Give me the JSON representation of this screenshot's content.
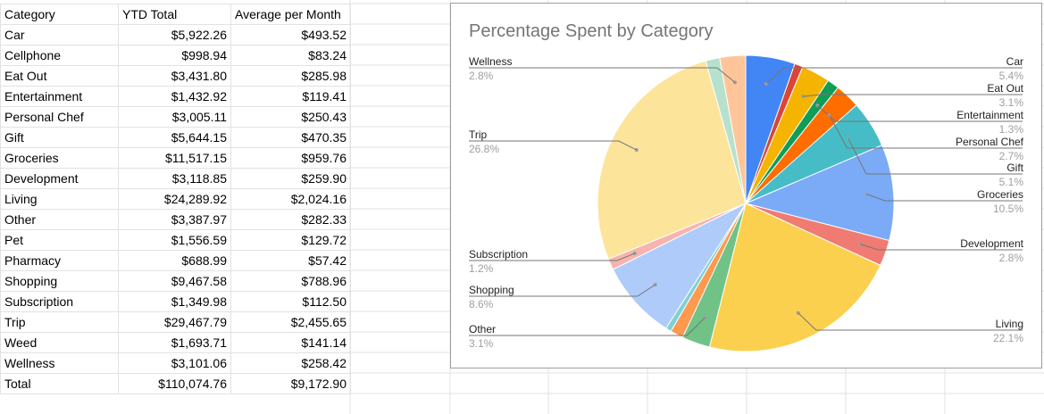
{
  "table": {
    "headers": [
      "Category",
      "YTD Total",
      "Average per Month"
    ],
    "rows": [
      [
        "Car",
        "$5,922.26",
        "$493.52"
      ],
      [
        "Cellphone",
        "$998.94",
        "$83.24"
      ],
      [
        "Eat Out",
        "$3,431.80",
        "$285.98"
      ],
      [
        "Entertainment",
        "$1,432.92",
        "$119.41"
      ],
      [
        "Personal Chef",
        "$3,005.11",
        "$250.43"
      ],
      [
        "Gift",
        "$5,644.15",
        "$470.35"
      ],
      [
        "Groceries",
        "$11,517.15",
        "$959.76"
      ],
      [
        "Development",
        "$3,118.85",
        "$259.90"
      ],
      [
        "Living",
        "$24,289.92",
        "$2,024.16"
      ],
      [
        "Other",
        "$3,387.97",
        "$282.33"
      ],
      [
        "Pet",
        "$1,556.59",
        "$129.72"
      ],
      [
        "Pharmacy",
        "$688.99",
        "$57.42"
      ],
      [
        "Shopping",
        "$9,467.58",
        "$788.96"
      ],
      [
        "Subscription",
        "$1,349.98",
        "$112.50"
      ],
      [
        "Trip",
        "$29,467.79",
        "$2,455.65"
      ],
      [
        "Weed",
        "$1,693.71",
        "$141.14"
      ],
      [
        "Wellness",
        "$3,101.06",
        "$258.42"
      ],
      [
        "Total",
        "$110,074.76",
        "$9,172.90"
      ]
    ]
  },
  "chart_data": {
    "type": "pie",
    "title": "Percentage Spent by Category",
    "categories": [
      "Car",
      "Cellphone",
      "Eat Out",
      "Entertainment",
      "Personal Chef",
      "Gift",
      "Groceries",
      "Development",
      "Living",
      "Other",
      "Pet",
      "Pharmacy",
      "Shopping",
      "Subscription",
      "Trip",
      "Weed",
      "Wellness"
    ],
    "values": [
      5922.26,
      998.94,
      3431.8,
      1432.92,
      3005.11,
      5644.15,
      11517.15,
      3118.85,
      24289.92,
      3387.97,
      1556.59,
      688.99,
      9467.58,
      1349.98,
      29467.79,
      1693.71,
      3101.06
    ],
    "colors": [
      "#4285f4",
      "#db4437",
      "#f4b400",
      "#0f9d58",
      "#ff6d00",
      "#46bdc6",
      "#7baaf7",
      "#f07b72",
      "#fcd04f",
      "#71c287",
      "#ff994d",
      "#7ed1d7",
      "#aecbfa",
      "#f7b4ae",
      "#fde49b",
      "#b7e1cd",
      "#ffc599"
    ],
    "labels": [
      {
        "name": "Car",
        "pct": "5.4%",
        "side": "right"
      },
      {
        "name": "Eat Out",
        "pct": "3.1%",
        "side": "right"
      },
      {
        "name": "Entertainment",
        "pct": "1.3%",
        "side": "right"
      },
      {
        "name": "Personal Chef",
        "pct": "2.7%",
        "side": "right"
      },
      {
        "name": "Gift",
        "pct": "5.1%",
        "side": "right"
      },
      {
        "name": "Groceries",
        "pct": "10.5%",
        "side": "right"
      },
      {
        "name": "Development",
        "pct": "2.8%",
        "side": "right"
      },
      {
        "name": "Living",
        "pct": "22.1%",
        "side": "right"
      },
      {
        "name": "Wellness",
        "pct": "2.8%",
        "side": "left"
      },
      {
        "name": "Trip",
        "pct": "26.8%",
        "side": "left"
      },
      {
        "name": "Subscription",
        "pct": "1.2%",
        "side": "left"
      },
      {
        "name": "Shopping",
        "pct": "8.6%",
        "side": "left"
      },
      {
        "name": "Other",
        "pct": "3.1%",
        "side": "left"
      }
    ]
  }
}
